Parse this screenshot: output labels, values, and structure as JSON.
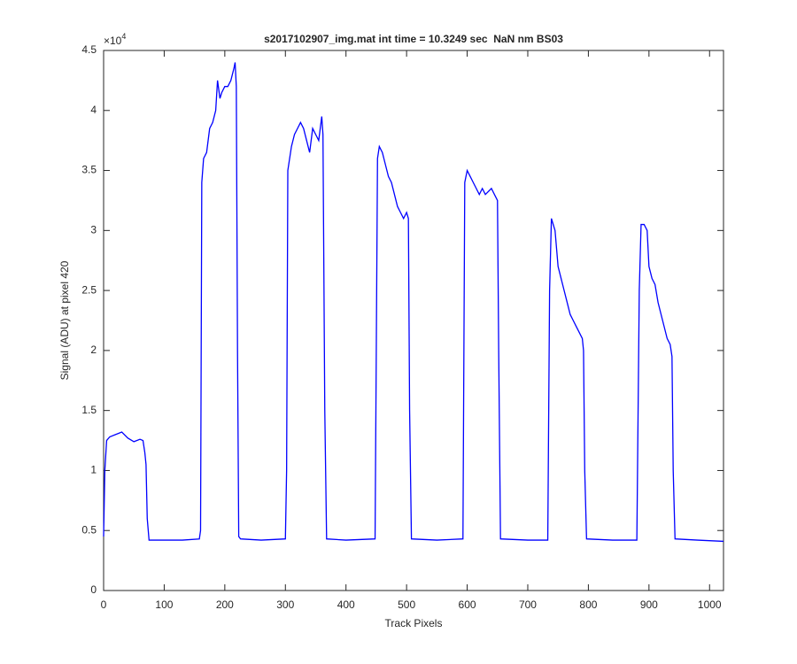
{
  "chart_data": {
    "type": "line",
    "title": "s2017102907_img.mat int time = 10.3249 sec  NaN nm BS03",
    "xlabel": "Track Pixels",
    "ylabel": "Signal (ADU) at pixel 420",
    "y_multiplier": {
      "base": "×10",
      "exponent": "4"
    },
    "xlim": [
      0,
      1023
    ],
    "ylim": [
      0,
      4.5
    ],
    "xticks": [
      0,
      100,
      200,
      300,
      400,
      500,
      600,
      700,
      800,
      900,
      1000
    ],
    "yticks": [
      0,
      0.5,
      1,
      1.5,
      2,
      2.5,
      3,
      3.5,
      4,
      4.5
    ],
    "grid": false,
    "series": [
      {
        "color": "#0000ff",
        "x": [
          0,
          2,
          5,
          10,
          20,
          30,
          40,
          50,
          60,
          65,
          68,
          70,
          72,
          75,
          100,
          130,
          158,
          160,
          162,
          165,
          170,
          175,
          180,
          185,
          188,
          192,
          195,
          200,
          205,
          210,
          215,
          217,
          219,
          221,
          223,
          226,
          260,
          300,
          302,
          304,
          310,
          315,
          320,
          325,
          330,
          335,
          340,
          345,
          350,
          355,
          360,
          362,
          365,
          368,
          400,
          448,
          450,
          452,
          455,
          460,
          465,
          470,
          475,
          480,
          485,
          490,
          495,
          500,
          503,
          505,
          508,
          550,
          593,
          596,
          600,
          605,
          610,
          615,
          620,
          625,
          630,
          640,
          645,
          650,
          652,
          655,
          700,
          733,
          736,
          739,
          742,
          745,
          750,
          755,
          760,
          765,
          770,
          775,
          780,
          785,
          790,
          792,
          794,
          797,
          840,
          880,
          884,
          887,
          892,
          897,
          900,
          905,
          910,
          915,
          920,
          925,
          930,
          935,
          938,
          940,
          943,
          980,
          1023
        ],
        "values": [
          0.45,
          1.0,
          1.25,
          1.28,
          1.3,
          1.32,
          1.27,
          1.24,
          1.26,
          1.25,
          1.15,
          1.05,
          0.6,
          0.42,
          0.42,
          0.42,
          0.43,
          0.5,
          3.4,
          3.6,
          3.65,
          3.85,
          3.9,
          4.0,
          4.25,
          4.1,
          4.15,
          4.2,
          4.2,
          4.25,
          4.35,
          4.4,
          4.2,
          2.0,
          0.45,
          0.43,
          0.42,
          0.43,
          1.0,
          3.5,
          3.7,
          3.8,
          3.85,
          3.9,
          3.85,
          3.75,
          3.65,
          3.85,
          3.8,
          3.75,
          3.95,
          3.8,
          1.5,
          0.43,
          0.42,
          0.43,
          2.0,
          3.6,
          3.7,
          3.65,
          3.55,
          3.45,
          3.4,
          3.3,
          3.2,
          3.15,
          3.1,
          3.15,
          3.1,
          1.5,
          0.43,
          0.42,
          0.43,
          3.4,
          3.5,
          3.45,
          3.4,
          3.35,
          3.3,
          3.35,
          3.3,
          3.35,
          3.3,
          3.25,
          2.0,
          0.43,
          0.42,
          0.42,
          2.5,
          3.1,
          3.05,
          3.0,
          2.7,
          2.6,
          2.5,
          2.4,
          2.3,
          2.25,
          2.2,
          2.15,
          2.1,
          2.0,
          1.0,
          0.43,
          0.42,
          0.42,
          2.5,
          3.05,
          3.05,
          3.0,
          2.7,
          2.6,
          2.55,
          2.4,
          2.3,
          2.2,
          2.1,
          2.05,
          1.95,
          1.0,
          0.43,
          0.42,
          0.41
        ]
      }
    ]
  }
}
